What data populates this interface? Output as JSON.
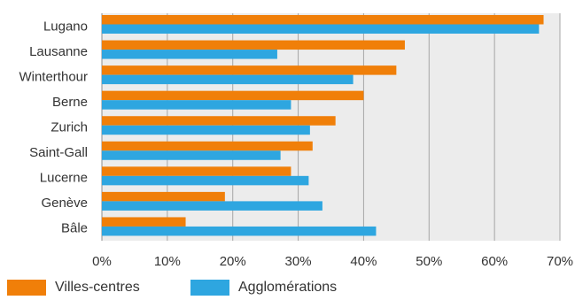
{
  "chart_data": {
    "type": "bar",
    "orientation": "horizontal",
    "categories": [
      "Lugano",
      "Lausanne",
      "Winterthour",
      "Berne",
      "Zurich",
      "Saint-Gall",
      "Lucerne",
      "Genève",
      "Bâle"
    ],
    "series": [
      {
        "name": "Villes-centres",
        "color": "#f07f09",
        "values": [
          67.5,
          46.3,
          45.0,
          40.0,
          35.7,
          32.2,
          28.9,
          18.8,
          12.8
        ]
      },
      {
        "name": "Agglomérations",
        "color": "#2ea6e0",
        "values": [
          66.8,
          26.8,
          38.4,
          28.9,
          31.8,
          27.3,
          31.6,
          33.7,
          41.9
        ]
      }
    ],
    "x_ticks": [
      "0%",
      "10%",
      "20%",
      "30%",
      "40%",
      "50%",
      "60%",
      "70%"
    ],
    "xlim": [
      0,
      70
    ],
    "grid": true,
    "legend_position": "bottom"
  }
}
